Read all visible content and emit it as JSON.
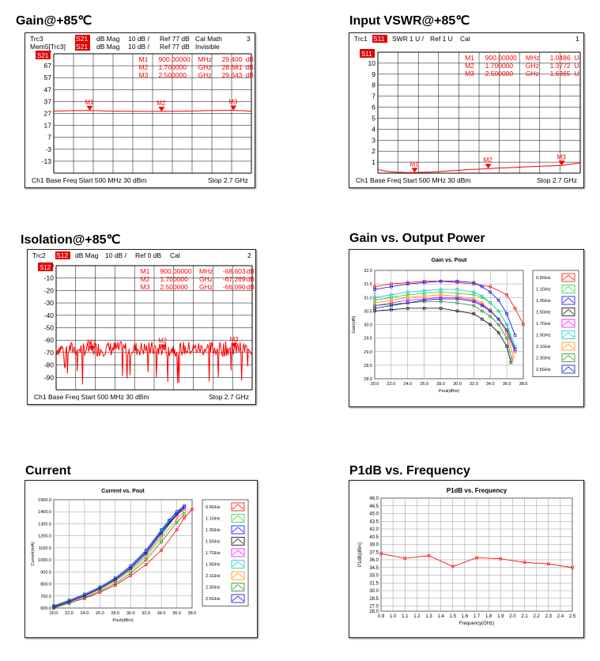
{
  "sections": {
    "gain_title": "Gain@+85℃",
    "vswr_title": "Input VSWR@+85℃",
    "isolation_title": "Isolation@+85℃",
    "gvp_title": "Gain vs. Output Power",
    "current_title": "Current",
    "p1db_title": "P1dB vs. Frequency"
  },
  "colors": {
    "trace": "#ff0000",
    "badge": "#e00000",
    "grid": "#000000",
    "series": [
      "#ff0000",
      "#2ecc2e",
      "#0000ff",
      "#000000",
      "#ff00ff",
      "#00cccc",
      "#ff8c00",
      "#228b22",
      "#0000cd"
    ]
  },
  "chart_data": [
    {
      "type": "line",
      "id": "gain",
      "title": "",
      "header_rows": [
        [
          "Trc3",
          "S21",
          "dB Mag",
          "10 dB /",
          "Ref 77 dB",
          "Cal Math",
          "3"
        ],
        [
          "Mem5[Trc3]",
          "S21",
          "dB Mag",
          "10 dB /",
          "Ref 77 dB",
          "Invisible",
          ""
        ]
      ],
      "markers": [
        {
          "name": "M1",
          "freq": "900.00000",
          "unit": "MHz",
          "value": "29.400",
          "vunit": "dB"
        },
        {
          "name": "M2",
          "freq": "1.700000",
          "unit": "GHz",
          "value": "28.681",
          "vunit": "dB"
        },
        {
          "name": "M3",
          "freq": "2.500000",
          "unit": "GHz",
          "value": "29.643",
          "vunit": "dB"
        }
      ],
      "yticks": [
        "77",
        "67",
        "57",
        "47",
        "37",
        "27",
        "17",
        "7",
        "-3",
        "-13"
      ],
      "ylim": [
        -23,
        77
      ],
      "x_freq_GHz": [
        0.5,
        0.6,
        0.7,
        0.8,
        0.9,
        1.0,
        1.1,
        1.2,
        1.3,
        1.4,
        1.5,
        1.6,
        1.7,
        1.8,
        1.9,
        2.0,
        2.1,
        2.2,
        2.3,
        2.4,
        2.5,
        2.6,
        2.7
      ],
      "y": [
        29.0,
        29.2,
        29.3,
        29.4,
        29.4,
        29.3,
        29.0,
        28.9,
        28.8,
        28.8,
        28.7,
        28.7,
        28.7,
        28.8,
        28.9,
        29.0,
        29.2,
        29.4,
        29.5,
        29.6,
        29.6,
        29.3,
        28.8
      ],
      "footer": {
        "left": "Ch1  Base Freq  Start  500 MHz  30 dBm",
        "right": "Stop  2.7 GHz"
      }
    },
    {
      "type": "line",
      "id": "vswr",
      "title": "",
      "header_rows": [
        [
          "Trc1",
          "S11",
          "SWR",
          "1 U /",
          "Ref 1 U",
          "Cal",
          "1"
        ]
      ],
      "markers": [
        {
          "name": "M1",
          "freq": "900.00000",
          "unit": "MHz",
          "value": "1.0486",
          "vunit": "U"
        },
        {
          "name": "M2",
          "freq": "1.700000",
          "unit": "GHz",
          "value": "1.3772",
          "vunit": "U"
        },
        {
          "name": "M3",
          "freq": "2.500000",
          "unit": "GHz",
          "value": "1.6365",
          "vunit": "U"
        }
      ],
      "yticks": [
        "11",
        "10",
        "9",
        "8",
        "7",
        "6",
        "5",
        "4",
        "3",
        "2",
        "1"
      ],
      "ylim": [
        1,
        11
      ],
      "x_freq_GHz": [
        0.5,
        0.6,
        0.7,
        0.8,
        0.9,
        1.0,
        1.1,
        1.2,
        1.3,
        1.4,
        1.5,
        1.6,
        1.7,
        1.8,
        1.9,
        2.0,
        2.1,
        2.2,
        2.3,
        2.4,
        2.5,
        2.6,
        2.7
      ],
      "y": [
        1.3,
        1.15,
        1.08,
        1.05,
        1.05,
        1.07,
        1.1,
        1.15,
        1.2,
        1.25,
        1.3,
        1.33,
        1.38,
        1.42,
        1.45,
        1.48,
        1.52,
        1.55,
        1.58,
        1.61,
        1.64,
        1.75,
        1.85
      ],
      "footer": {
        "left": "Ch1  Base Freq  Start  500 MHz 30 dBm",
        "right": "Stop  2.7 GHz"
      }
    },
    {
      "type": "line",
      "id": "isolation",
      "title": "",
      "header_rows": [
        [
          "Trc2",
          "S12",
          "dB Mag",
          "10 dB /",
          "Ref 0 dB",
          "Cal",
          "2"
        ]
      ],
      "markers": [
        {
          "name": "M1",
          "freq": "900.00000",
          "unit": "MHz",
          "value": "-68.603",
          "vunit": "dB"
        },
        {
          "name": "M2",
          "freq": "1.700000",
          "unit": "GHz",
          "value": "-67.269",
          "vunit": "dB"
        },
        {
          "name": "M3",
          "freq": "2.500000",
          "unit": "GHz",
          "value": "-66.090",
          "vunit": "dB"
        }
      ],
      "yticks": [
        "0",
        "-10",
        "-20",
        "-30",
        "-40",
        "-50",
        "-60",
        "-70",
        "-80",
        "-90"
      ],
      "ylim": [
        -100,
        0
      ],
      "noise_mean": -67,
      "footer": {
        "left": "Ch1  Base Freq  Start  500 MHz 30 dBm",
        "right": "Stop  2.7 GHz"
      }
    },
    {
      "type": "line",
      "id": "gain_vs_pout",
      "title": "Gain vs. Pout",
      "xlabel": "Pout(dBm)",
      "ylabel": "Gain(dB)",
      "xlim": [
        20,
        38
      ],
      "ylim": [
        28,
        32
      ],
      "xticks": [
        "20.0",
        "22.0",
        "24.0",
        "26.0",
        "28.0",
        "30.0",
        "32.0",
        "34.0",
        "36.0",
        "38.0"
      ],
      "yticks": [
        "32.0",
        "31.5",
        "31.0",
        "30.5",
        "30.0",
        "29.5",
        "29.0",
        "28.5",
        "28.0"
      ],
      "legend": [
        "0.9GHz",
        "1.1GHz",
        "1.3GHz",
        "1.5GHz",
        "1.7GHz",
        "1.9GHz",
        "2.1GHz",
        "2.3GHz",
        "2.5GHz"
      ],
      "series": [
        {
          "x": [
            20,
            22,
            24,
            26,
            28,
            30,
            32,
            34,
            36,
            37,
            38
          ],
          "y": [
            31.4,
            31.5,
            31.55,
            31.6,
            31.6,
            31.55,
            31.5,
            31.4,
            31.1,
            30.6,
            30.0
          ]
        },
        {
          "x": [
            20,
            22,
            24,
            26,
            28,
            30,
            32,
            33,
            34,
            35,
            36,
            37
          ],
          "y": [
            30.9,
            31.0,
            31.1,
            31.15,
            31.2,
            31.15,
            31.1,
            31.0,
            30.8,
            30.5,
            30.0,
            29.0
          ]
        },
        {
          "x": [
            20,
            22,
            24,
            26,
            28,
            30,
            32,
            33,
            34,
            35,
            36,
            37
          ],
          "y": [
            31.3,
            31.4,
            31.5,
            31.55,
            31.6,
            31.6,
            31.55,
            31.4,
            31.2,
            30.9,
            30.4,
            29.6
          ]
        },
        {
          "x": [
            20,
            22,
            24,
            26,
            28,
            30,
            32,
            33,
            34,
            35,
            36,
            36.5
          ],
          "y": [
            30.5,
            30.55,
            30.6,
            30.6,
            30.6,
            30.5,
            30.4,
            30.2,
            30.0,
            29.7,
            29.2,
            28.6
          ]
        },
        {
          "x": [
            20,
            22,
            24,
            26,
            28,
            30,
            32,
            33,
            34,
            35,
            36,
            37
          ],
          "y": [
            30.7,
            30.8,
            30.9,
            30.95,
            31.0,
            31.0,
            30.9,
            30.75,
            30.5,
            30.2,
            29.7,
            29.0
          ]
        },
        {
          "x": [
            20,
            22,
            24,
            26,
            28,
            30,
            32,
            33,
            34,
            35,
            36,
            37
          ],
          "y": [
            31.0,
            31.1,
            31.2,
            31.25,
            31.3,
            31.3,
            31.2,
            31.05,
            30.8,
            30.5,
            30.0,
            29.2
          ]
        },
        {
          "x": [
            20,
            22,
            24,
            26,
            28,
            30,
            32,
            33,
            34,
            35,
            36,
            36.8
          ],
          "y": [
            30.8,
            30.9,
            31.0,
            31.05,
            31.1,
            31.05,
            30.95,
            30.8,
            30.55,
            30.2,
            29.7,
            28.8
          ]
        },
        {
          "x": [
            20,
            22,
            24,
            26,
            28,
            30,
            32,
            33,
            34,
            35,
            36,
            36.6
          ],
          "y": [
            30.7,
            30.75,
            30.8,
            30.85,
            30.85,
            30.8,
            30.7,
            30.5,
            30.3,
            30.0,
            29.5,
            28.7
          ]
        },
        {
          "x": [
            20,
            22,
            24,
            26,
            28,
            30,
            32,
            33,
            34,
            35,
            36,
            37
          ],
          "y": [
            30.6,
            30.7,
            30.8,
            30.9,
            30.95,
            30.95,
            30.85,
            30.7,
            30.5,
            30.2,
            29.8,
            29.1
          ]
        }
      ]
    },
    {
      "type": "line",
      "id": "current_vs_pout",
      "title": "Current vs. Pout",
      "xlabel": "Pout(dBm)",
      "ylabel": "Current(mA)",
      "xlim": [
        20,
        38
      ],
      "ylim": [
        600,
        1500
      ],
      "xticks": [
        "20.0",
        "22.0",
        "24.0",
        "26.0",
        "28.0",
        "30.0",
        "32.0",
        "34.0",
        "36.0",
        "38.0"
      ],
      "yticks": [
        "1500.0",
        "1400.0",
        "1300.0",
        "1200.0",
        "1100.0",
        "1000.0",
        "900.0",
        "800.0",
        "700.0",
        "600.0"
      ],
      "legend": [
        "0.9GHz",
        "1.1GHz",
        "1.3GHz",
        "1.5GHz",
        "1.7GHz",
        "1.9GHz",
        "2.1GHz",
        "2.3GHz",
        "2.5GHz"
      ],
      "series": [
        {
          "x": [
            20,
            22,
            24,
            26,
            28,
            30,
            32,
            34,
            36,
            37,
            38
          ],
          "y": [
            600,
            640,
            680,
            730,
            790,
            870,
            960,
            1080,
            1250,
            1350,
            1420
          ]
        },
        {
          "x": [
            20,
            22,
            24,
            26,
            28,
            30,
            32,
            34,
            36,
            37
          ],
          "y": [
            610,
            655,
            700,
            760,
            830,
            920,
            1040,
            1200,
            1380,
            1420
          ]
        },
        {
          "x": [
            20,
            22,
            24,
            26,
            28,
            30,
            32,
            34,
            35,
            36,
            37
          ],
          "y": [
            620,
            665,
            715,
            775,
            850,
            950,
            1080,
            1250,
            1330,
            1400,
            1450
          ]
        },
        {
          "x": [
            20,
            22,
            24,
            26,
            28,
            30,
            32,
            34,
            36,
            36.5
          ],
          "y": [
            615,
            660,
            710,
            770,
            845,
            940,
            1070,
            1240,
            1380,
            1410
          ]
        },
        {
          "x": [
            20,
            22,
            24,
            26,
            28,
            30,
            32,
            34,
            36,
            37
          ],
          "y": [
            612,
            658,
            708,
            768,
            842,
            938,
            1065,
            1230,
            1370,
            1430
          ]
        },
        {
          "x": [
            20,
            22,
            24,
            26,
            28,
            30,
            32,
            34,
            36,
            37
          ],
          "y": [
            618,
            663,
            712,
            772,
            848,
            945,
            1075,
            1245,
            1390,
            1440
          ]
        },
        {
          "x": [
            20,
            22,
            24,
            26,
            28,
            30,
            32,
            34,
            36,
            37
          ],
          "y": [
            605,
            648,
            695,
            752,
            822,
            910,
            1025,
            1180,
            1340,
            1400
          ]
        },
        {
          "x": [
            20,
            22,
            24,
            26,
            28,
            30,
            32,
            34,
            36,
            37
          ],
          "y": [
            600,
            640,
            685,
            740,
            805,
            890,
            1000,
            1150,
            1310,
            1380
          ]
        },
        {
          "x": [
            20,
            22,
            24,
            26,
            28,
            30,
            32,
            34,
            36,
            37
          ],
          "y": [
            608,
            652,
            702,
            762,
            836,
            930,
            1055,
            1220,
            1380,
            1440
          ]
        }
      ]
    },
    {
      "type": "line",
      "id": "p1db_vs_freq",
      "title": "P1dB vs. Frequency",
      "xlabel": "Frequency(GHz)",
      "ylabel": "P1dB(dBm)",
      "xlim": [
        0.9,
        2.5
      ],
      "ylim": [
        26,
        48
      ],
      "xticks": [
        "0.9",
        "1.0",
        "1.1",
        "1.2",
        "1.3",
        "1.4",
        "1.5",
        "1.6",
        "1.7",
        "1.8",
        "1.9",
        "2.0",
        "2.1",
        "2.2",
        "2.3",
        "2.4",
        "2.5"
      ],
      "yticks": [
        "48.0",
        "46.5",
        "45.0",
        "43.5",
        "42.0",
        "40.5",
        "39.0",
        "37.5",
        "36.0",
        "34.5",
        "33.0",
        "31.5",
        "30.0",
        "28.5",
        "27.0",
        "26.0"
      ],
      "series": [
        {
          "x": [
            0.9,
            1.1,
            1.3,
            1.5,
            1.7,
            1.9,
            2.1,
            2.3,
            2.5
          ],
          "y": [
            37.2,
            36.3,
            36.8,
            34.7,
            36.4,
            36.2,
            35.5,
            35.2,
            34.5
          ]
        }
      ]
    }
  ]
}
